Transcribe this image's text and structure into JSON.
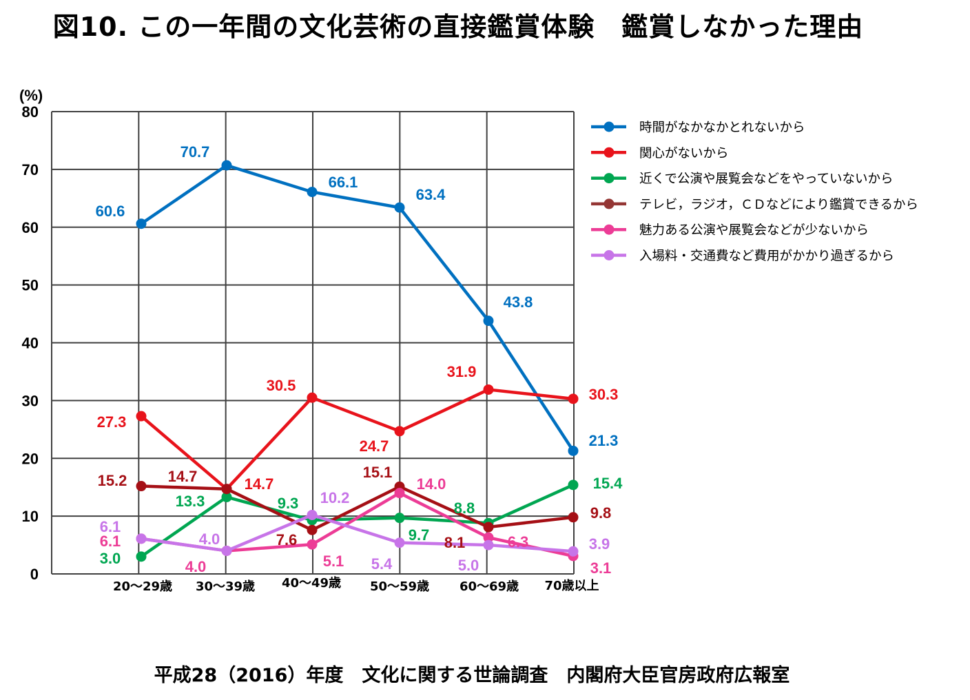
{
  "title": "図10.  この一年間の文化芸術の直接鑑賞体験　鑑賞しなかった理由",
  "source": "平成28（2016）年度　文化に関する世論調査　内閣府大臣官房政府広報室",
  "chart_data": {
    "type": "line",
    "ylabel": "(%)",
    "ylim": [
      0,
      80
    ],
    "yticks": [
      "0",
      "10",
      "20",
      "30",
      "40",
      "50",
      "60",
      "70",
      "80"
    ],
    "grid": true,
    "legend_position": "right",
    "categories": [
      "20～29歳",
      "30～39歳",
      "40～49歳",
      "50～59歳",
      "60～69歳",
      "70歳以上"
    ],
    "series": [
      {
        "name": "時間がなかなかとれないから",
        "color": "#0070C0",
        "values": [
          60.6,
          70.7,
          66.1,
          63.4,
          43.8,
          21.3
        ],
        "labels": [
          "60.6",
          "70.7",
          "66.1",
          "63.4",
          "43.8",
          "21.3"
        ]
      },
      {
        "name": "関心がないから",
        "color": "#E8131B",
        "values": [
          27.3,
          14.7,
          30.5,
          24.7,
          31.9,
          30.3
        ],
        "labels": [
          "27.3",
          "14.7",
          "30.5",
          "24.7",
          "31.9",
          "30.3"
        ]
      },
      {
        "name": "近くで公演や展覧会などをやっていないから",
        "color": "#00A651",
        "values": [
          3.0,
          13.3,
          9.3,
          9.7,
          8.8,
          15.4
        ],
        "labels": [
          "3.0",
          "13.3",
          "9.3",
          "9.7",
          "8.8",
          "15.4"
        ]
      },
      {
        "name": "テレビ，ラジオ，ＣＤなどにより鑑賞できるから",
        "color": "#A50F15",
        "legend_color": "#943634",
        "values": [
          15.2,
          14.7,
          7.6,
          15.1,
          8.1,
          9.8
        ],
        "labels": [
          "15.2",
          "14.7",
          "7.6",
          "15.1",
          "8.1",
          "9.8"
        ]
      },
      {
        "name": "魅力ある公演や展覧会などが少ないから",
        "color": "#EC3C96",
        "values": [
          6.1,
          4.0,
          5.1,
          14.0,
          6.3,
          3.1
        ],
        "labels": [
          "6.1",
          "4.0",
          "5.1",
          "14.0",
          "6.3",
          "3.1"
        ]
      },
      {
        "name": "入場料・交通費など費用がかかり過ぎるから",
        "color": "#C774E8",
        "values": [
          6.1,
          4.0,
          10.2,
          5.4,
          5.0,
          3.9
        ],
        "labels": [
          "6.1",
          "4.0",
          "10.2",
          "5.4",
          "5.0",
          "3.9"
        ]
      }
    ]
  }
}
